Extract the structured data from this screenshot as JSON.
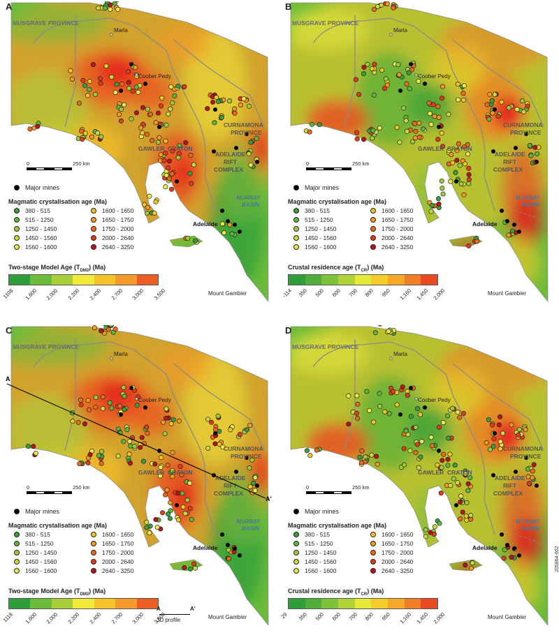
{
  "panels": [
    {
      "id": "A",
      "label": "A",
      "variant": "A",
      "colorbar_title": "Two-stage Model Age (T",
      "colorbar_sub": "DM2",
      "colorbar_unit": ") (Ma)",
      "ticks": [
        "1108",
        "1,600",
        "2,000",
        "2,200",
        "2,400",
        "2,700",
        "3,000",
        "3,500"
      ],
      "profile": false
    },
    {
      "id": "B",
      "label": "B",
      "variant": "B",
      "colorbar_title": "Crustal residence age (T",
      "colorbar_sub": "CR",
      "colorbar_unit": ") (Ma)",
      "ticks": [
        "-114",
        "350",
        "500",
        "600",
        "700",
        "800",
        "950",
        "1,160",
        "1,450",
        "2,000"
      ],
      "profile": false
    },
    {
      "id": "C",
      "label": "C",
      "variant": "A",
      "colorbar_title": "Two-stage Model Age (T",
      "colorbar_sub": "DM2",
      "colorbar_unit": ") (Ma)",
      "ticks": [
        "1118",
        "1,600",
        "2,000",
        "2,200",
        "2,400",
        "2,700",
        "3,000",
        "3,500"
      ],
      "profile": true
    },
    {
      "id": "D",
      "label": "D",
      "variant": "B",
      "colorbar_title": "Crustal residence age (T",
      "colorbar_sub": "CR",
      "colorbar_unit": ") (Ma)",
      "ticks": [
        "29",
        "350",
        "500",
        "600",
        "700",
        "800",
        "950",
        "1,160",
        "1,450",
        "2,000"
      ],
      "profile": false
    }
  ],
  "map_labels": {
    "musgrave": "MUSGRAVE PROVINCE",
    "marla": "Marla",
    "coober_pedy": "Coober Pedy",
    "curnamona_1": "CURNAMONA",
    "curnamona_2": "PROVINCE",
    "gawler": "GAWLER",
    "craton": "CRATON",
    "adelaide_1": "ADELAIDE",
    "adelaide_2": "RIFT",
    "adelaide_3": "COMPLEX",
    "murray_1": "MURRAY",
    "murray_2": "BASIN",
    "adelaide_city": "Adelaide",
    "mount_gambier": "Mount Gambier"
  },
  "scale": {
    "zero": "0",
    "end": "250 km"
  },
  "legend": {
    "major_mines": "Major mines",
    "title": "Magmatic crystalisation age (Ma)",
    "classes": [
      {
        "label": "380 - 515",
        "color": "#3a9e3a"
      },
      {
        "label": "1600 - 1650",
        "color": "#f2c81c"
      },
      {
        "label": "515 - 1250",
        "color": "#5bb83a"
      },
      {
        "label": "1650 - 1750",
        "color": "#f59a1a"
      },
      {
        "label": "1250 - 1450",
        "color": "#9ccc3a"
      },
      {
        "label": "1750 - 2000",
        "color": "#ee6a18"
      },
      {
        "label": "1450 - 1560",
        "color": "#c8dc3a"
      },
      {
        "label": "2000 - 2640",
        "color": "#e33a1a"
      },
      {
        "label": "1560 - 1600",
        "color": "#eee84a"
      },
      {
        "label": "2640 - 3250",
        "color": "#b8141a"
      }
    ]
  },
  "colorbar_colors_A": [
    "#2e9e3a",
    "#6dbb3a",
    "#a8cf3a",
    "#f1ea3a",
    "#f6c42a",
    "#f39a2a",
    "#ec5e24",
    "#e6241e"
  ],
  "colorbar_colors_B": [
    "#2e9e3a",
    "#52ae3a",
    "#7dc23a",
    "#aed43a",
    "#e6e83a",
    "#f5cc2a",
    "#f6a82a",
    "#f07e26",
    "#ea4a22",
    "#e6121e"
  ],
  "profile": {
    "a": "A",
    "a_prime": "A'",
    "text": "3D profile"
  },
  "figure_code": "205864-002"
}
